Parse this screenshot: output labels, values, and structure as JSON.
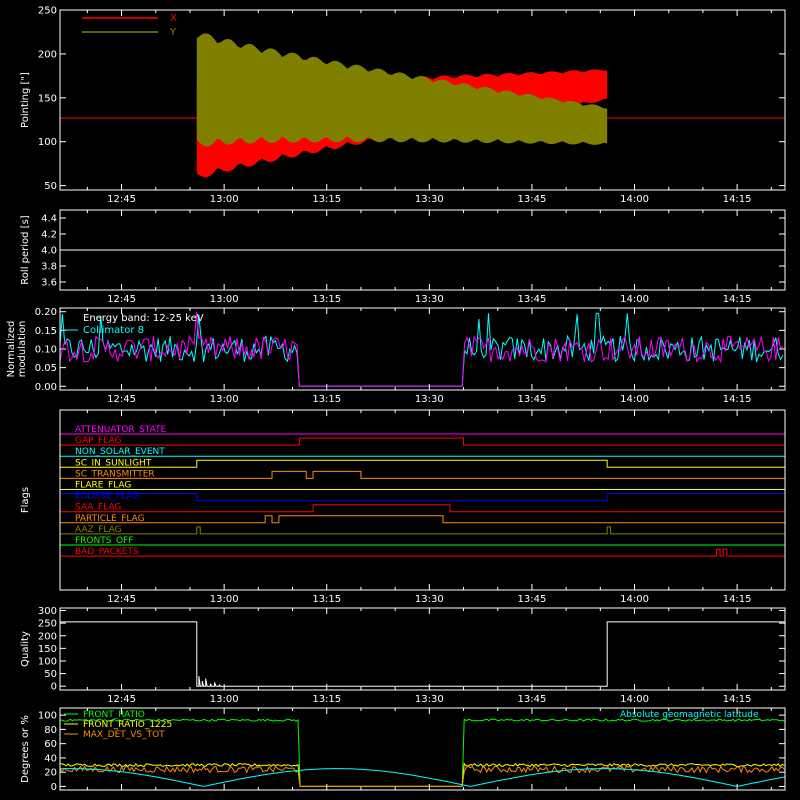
{
  "colors": {
    "background": "#000000",
    "axis": "#ffffff",
    "x_red": "#ff0000",
    "y_olive": "#808000",
    "magenta": "#ff00ff",
    "cyan": "#00ffff",
    "green": "#00ff00",
    "yellow": "#ffff00",
    "orange": "#ff8c00",
    "blue": "#0000ff"
  },
  "time_axis": {
    "tick_labels": [
      "12:45",
      "13:00",
      "13:15",
      "13:30",
      "13:45",
      "14:00",
      "14:15"
    ],
    "range": [
      "12:36",
      "14:22"
    ]
  },
  "chart_data": [
    {
      "type": "line",
      "ylabel": "Pointing [\"]",
      "ylim": [
        45,
        250
      ],
      "yticks": [
        50,
        100,
        150,
        200,
        250
      ],
      "legend": "top-left",
      "series": [
        {
          "name": "X",
          "color": "#ff0000",
          "baseline": 127,
          "active_range": [
            "12:56",
            "13:56"
          ],
          "centre_start": 115,
          "centre_end": 165,
          "half_amplitude_start": 60,
          "half_amplitude_end": 18
        },
        {
          "name": "Y",
          "color": "#808000",
          "baseline": 127,
          "active_range": [
            "12:56",
            "13:56"
          ],
          "centre_start": 160,
          "centre_end": 118,
          "half_amplitude_start": 68,
          "half_amplitude_end": 22
        }
      ]
    },
    {
      "type": "line",
      "ylabel": "Roll period [s]",
      "ylim": [
        3.5,
        4.5
      ],
      "yticks": [
        3.6,
        3.8,
        4.0,
        4.2,
        4.4
      ],
      "series": [
        {
          "color": "#ffffff",
          "value": 4.0
        }
      ]
    },
    {
      "type": "line",
      "ylabel": "Normalized modulation",
      "ylim": [
        -0.01,
        0.21
      ],
      "yticks": [
        0.0,
        0.05,
        0.1,
        0.15,
        0.2
      ],
      "annotations": [
        "Energy band: 12-25 keV",
        "Collimator 8"
      ],
      "series": [
        {
          "name": "Collimator 8",
          "color": "#00ffff",
          "level": 0.1,
          "gap": [
            "13:11",
            "13:35"
          ]
        },
        {
          "name": "",
          "color": "#ff00ff",
          "level": 0.1,
          "gap": [
            "13:11",
            "13:35"
          ]
        }
      ]
    },
    {
      "type": "line",
      "ylabel": "Flags",
      "flags": [
        {
          "name": "ATTENUATOR_STATE",
          "color": "#ff00ff",
          "high": []
        },
        {
          "name": "GAP_FLAG",
          "color": "#ff0000",
          "high": [
            [
              "13:11",
              "13:35"
            ]
          ]
        },
        {
          "name": "NON_SOLAR_EVENT",
          "color": "#00ffff",
          "high": []
        },
        {
          "name": "SC_IN_SUNLIGHT",
          "color": "#ffff00",
          "high": [
            [
              "12:56",
              "13:56"
            ]
          ]
        },
        {
          "name": "SC_TRANSMITTER",
          "color": "#ff8c00",
          "high": [
            [
              "13:07",
              "13:12"
            ],
            [
              "13:13",
              "13:20"
            ]
          ]
        },
        {
          "name": "FLARE_FLAG",
          "color": "#ffff00",
          "high": []
        },
        {
          "name": "ECLIPSE_FLAG",
          "color": "#0000ff",
          "high": [
            [
              "12:36",
              "12:56"
            ],
            [
              "13:56",
              "14:22"
            ]
          ]
        },
        {
          "name": "SAA_FLAG",
          "color": "#ff0000",
          "high": [
            [
              "13:13",
              "13:33"
            ]
          ]
        },
        {
          "name": "PARTICLE_FLAG",
          "color": "#ff8c00",
          "high": [
            [
              "13:06",
              "13:07"
            ],
            [
              "13:08",
              "13:32"
            ]
          ]
        },
        {
          "name": "AAZ_FLAG",
          "color": "#808000",
          "high": [
            [
              "12:56",
              "12:56.5"
            ],
            [
              "13:56",
              "13:56.5"
            ]
          ]
        },
        {
          "name": "FRONTS_OFF",
          "color": "#00ff00",
          "high": []
        },
        {
          "name": "BAD_PACKETS",
          "color": "#ff0000",
          "high": [
            [
              "14:12",
              "14:12.5"
            ],
            [
              "14:13",
              "14:13.5"
            ]
          ]
        }
      ]
    },
    {
      "type": "line",
      "ylabel": "Quality",
      "ylim": [
        -15,
        310
      ],
      "yticks": [
        0,
        50,
        100,
        150,
        200,
        250,
        300
      ],
      "series": [
        {
          "color": "#ffffff",
          "high_value": 255,
          "high_ranges": [
            [
              "12:36",
              "12:56"
            ],
            [
              "13:56",
              "14:22"
            ]
          ]
        }
      ]
    },
    {
      "type": "line",
      "ylabel": "Degrees or %",
      "ylim": [
        -5,
        110
      ],
      "yticks": [
        0,
        20,
        40,
        60,
        80,
        100
      ],
      "annotations": [
        "Absolute geomagnetic latitude"
      ],
      "series": [
        {
          "name": "FRONT_RATIO",
          "color": "#00ff00",
          "level": 93,
          "gap": [
            "13:11",
            "13:35"
          ]
        },
        {
          "name": "FRONT_RATIO_1225",
          "color": "#ffff00",
          "level": 30,
          "gap": [
            "13:11",
            "13:35"
          ]
        },
        {
          "name": "MAX_DET_VS_TOT",
          "color": "#ff8c00",
          "level": 24,
          "gap": [
            "13:11",
            "13:35"
          ]
        },
        {
          "name": "",
          "color": "#00ffff",
          "minima": [
            "12:57",
            "13:36",
            "14:15"
          ],
          "maxima": [
            "13:16",
            "13:55"
          ],
          "min_value": 0,
          "max_value": 25
        }
      ]
    }
  ]
}
